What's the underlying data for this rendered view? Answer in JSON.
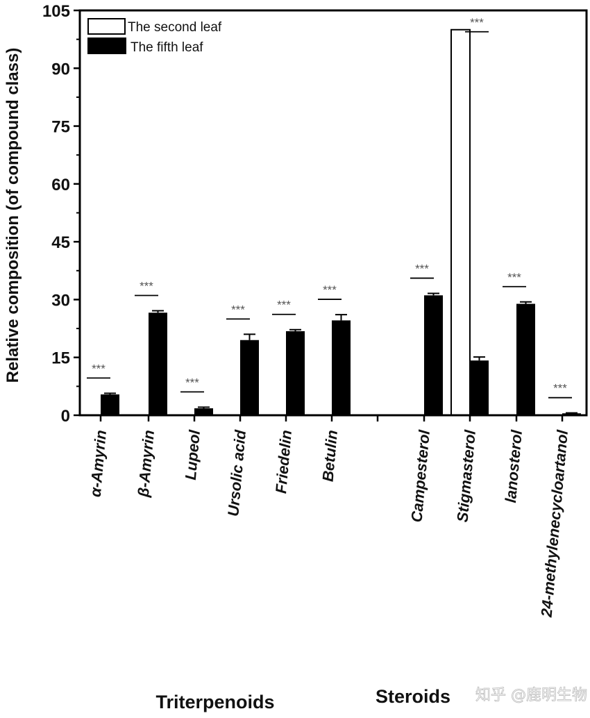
{
  "chart_data": {
    "type": "bar",
    "title": "",
    "xlabel": "",
    "ylabel": "Relative composition (of compound class)",
    "ylim": [
      0,
      105
    ],
    "yticks": [
      0,
      15,
      30,
      45,
      60,
      75,
      90,
      105
    ],
    "grid": false,
    "legend_position": "top-left",
    "groups": [
      {
        "name": "Triterpenoids",
        "categories": [
          "α-Amyrin",
          "β-Amyrin",
          "Lupeol",
          "Ursolic acid",
          "Friedelin",
          "Betulin"
        ]
      },
      {
        "name": "Steroids",
        "categories": [
          "Campesterol",
          "Stigmasterol",
          "lanosterol",
          "24-methylenecycloartanol"
        ]
      }
    ],
    "categories": [
      "α-Amyrin",
      "β-Amyrin",
      "Lupeol",
      "Ursolic acid",
      "Friedelin",
      "Betulin",
      "Campesterol",
      "Stigmasterol",
      "lanosterol",
      "24-methylenecycloartanol"
    ],
    "series": [
      {
        "name": "The second leaf",
        "color": "#ffffff",
        "values": [
          0,
          0,
          0,
          0,
          0,
          0,
          0,
          100,
          0,
          0
        ],
        "errors": [
          0,
          0,
          0,
          0,
          0,
          0,
          0,
          0,
          0,
          0
        ]
      },
      {
        "name": "The fifth leaf",
        "color": "#000000",
        "values": [
          5.4,
          26.6,
          1.8,
          19.5,
          21.8,
          24.6,
          31.1,
          14.2,
          28.9,
          0.5
        ],
        "errors": [
          0.3,
          0.5,
          0.3,
          1.5,
          0.4,
          1.5,
          0.5,
          0.9,
          0.5,
          0.1
        ]
      }
    ],
    "significance": [
      "***",
      "***",
      "***",
      "***",
      "***",
      "***",
      "***",
      "***",
      "***",
      "***"
    ]
  },
  "watermark": "知乎 @鹿明生物"
}
